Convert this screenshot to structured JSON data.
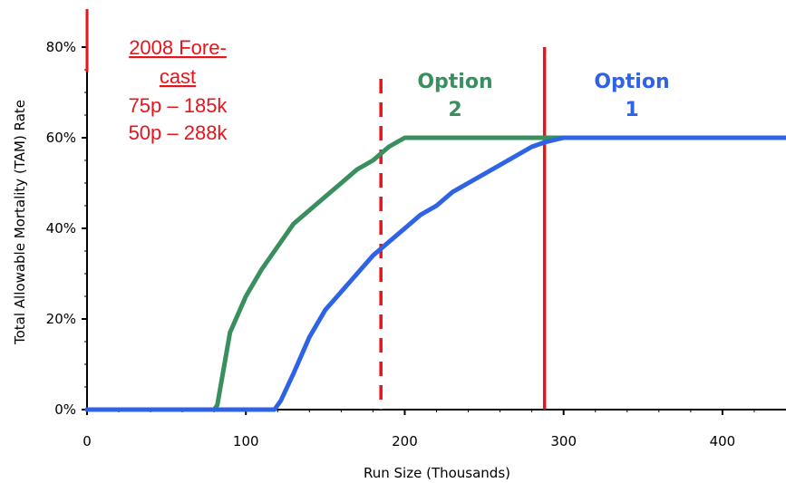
{
  "chart_data": {
    "type": "line",
    "xlabel": "Run Size (Thousands)",
    "ylabel": "Total Allowable Mortality (TAM) Rate",
    "xlim": [
      0,
      440
    ],
    "ylim": [
      0,
      0.8
    ],
    "x_ticks": [
      {
        "value": 0,
        "label": "0"
      },
      {
        "value": 100,
        "label": "100"
      },
      {
        "value": 200,
        "label": "200"
      },
      {
        "value": 300,
        "label": "300"
      },
      {
        "value": 400,
        "label": "400"
      }
    ],
    "y_ticks": [
      {
        "value": 0,
        "label": "0%"
      },
      {
        "value": 0.2,
        "label": "20%"
      },
      {
        "value": 0.4,
        "label": "40%"
      },
      {
        "value": 0.6,
        "label": "60%"
      },
      {
        "value": 0.8,
        "label": "80%"
      }
    ],
    "grid": false,
    "series": [
      {
        "name": "Option 2",
        "color": "#3a8f5e",
        "x": [
          0,
          80,
          82,
          90,
          100,
          110,
          120,
          130,
          140,
          150,
          160,
          170,
          180,
          190,
          195,
          200,
          210,
          250,
          300,
          350,
          400,
          440
        ],
        "y": [
          0,
          0,
          0.01,
          0.17,
          0.25,
          0.31,
          0.36,
          0.41,
          0.44,
          0.47,
          0.5,
          0.53,
          0.55,
          0.58,
          0.59,
          0.6,
          0.6,
          0.6,
          0.6,
          0.6,
          0.6,
          0.6
        ]
      },
      {
        "name": "Option 1",
        "color": "#2f63e6",
        "x": [
          0,
          118,
          122,
          130,
          140,
          150,
          160,
          170,
          180,
          190,
          200,
          210,
          220,
          230,
          240,
          250,
          260,
          270,
          280,
          288,
          300,
          350,
          400,
          440
        ],
        "y": [
          0,
          0,
          0.02,
          0.08,
          0.16,
          0.22,
          0.26,
          0.3,
          0.34,
          0.37,
          0.4,
          0.43,
          0.45,
          0.48,
          0.5,
          0.52,
          0.54,
          0.56,
          0.58,
          0.59,
          0.6,
          0.6,
          0.6,
          0.6
        ]
      }
    ],
    "vlines": [
      {
        "x": 185,
        "style": "dashed",
        "color": "#e8141b",
        "y_top": 0.73
      },
      {
        "x": 288,
        "style": "solid",
        "color": "#e8141b",
        "y_top": 0.8
      }
    ],
    "annotations": {
      "option2": {
        "line1": "Option",
        "line2": "2",
        "color": "#3a8f5e"
      },
      "option1": {
        "line1": "Option",
        "line2": "1",
        "color": "#2f63e6"
      },
      "forecast": {
        "line1": "2008 Fore-",
        "line2": "cast",
        "line3": "75p – 185k",
        "line4": "50p – 288k",
        "color": "#e8141b"
      }
    }
  }
}
